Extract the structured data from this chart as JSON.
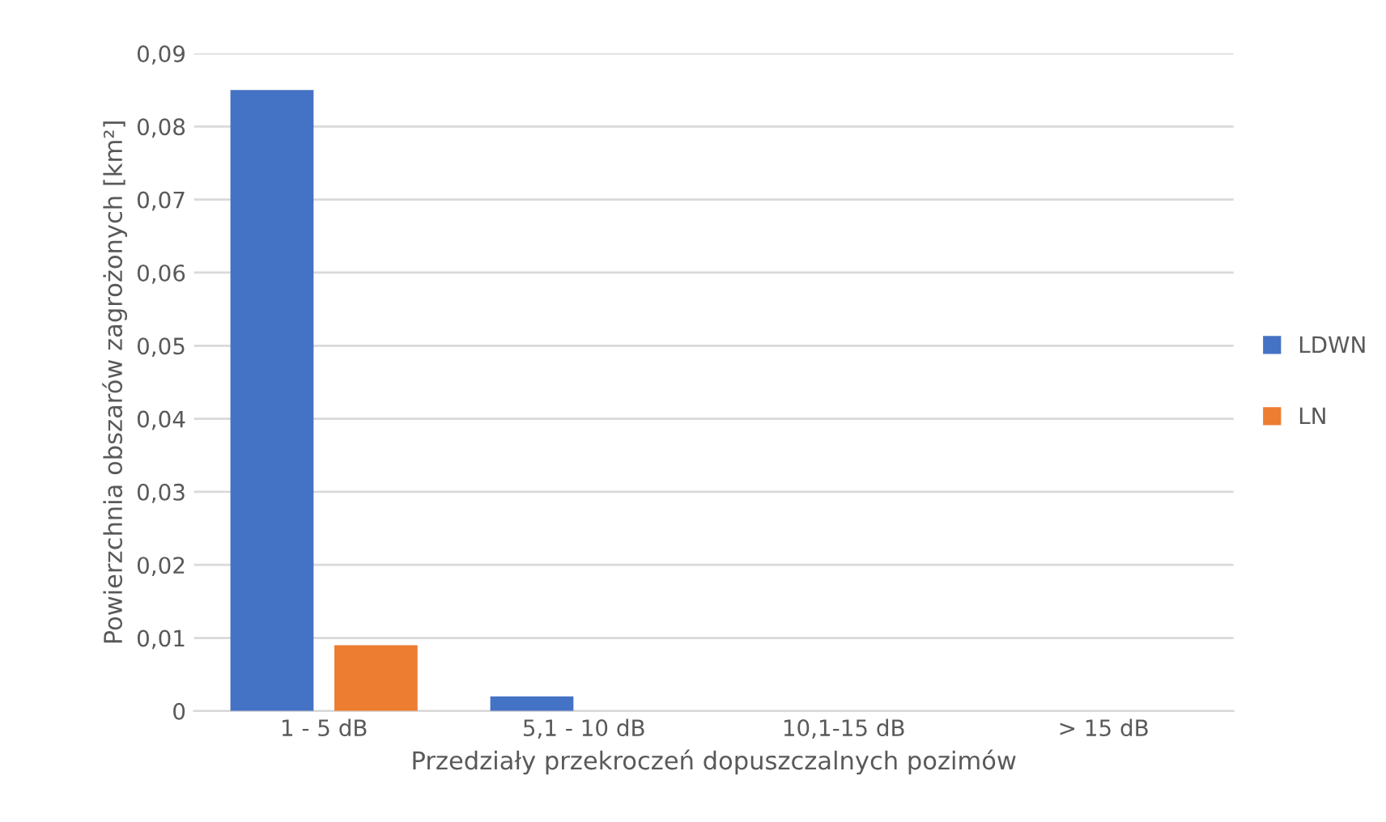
{
  "chart_data": {
    "type": "bar",
    "xlabel": "Przedziały przekroczeń dopuszczalnych pozimów",
    "ylabel": "Powierzchnia obszarów zagrożonych [km²]",
    "categories": [
      "1 - 5 dB",
      "5,1 - 10 dB",
      "10,1-15 dB",
      "> 15 dB"
    ],
    "series": [
      {
        "name": "LDWN",
        "color": "#4472c4",
        "values": [
          0.085,
          0.002,
          0,
          0
        ]
      },
      {
        "name": "LN",
        "color": "#ed7d31",
        "values": [
          0.009,
          0,
          0,
          0
        ]
      }
    ],
    "ylim": [
      0,
      0.09
    ],
    "yticks": [
      {
        "value": 0,
        "label": "0"
      },
      {
        "value": 0.01,
        "label": "0,01"
      },
      {
        "value": 0.02,
        "label": "0,02"
      },
      {
        "value": 0.03,
        "label": "0,03"
      },
      {
        "value": 0.04,
        "label": "0,04"
      },
      {
        "value": 0.05,
        "label": "0,05"
      },
      {
        "value": 0.06,
        "label": "0,06"
      },
      {
        "value": 0.07,
        "label": "0,07"
      },
      {
        "value": 0.08,
        "label": "0,08"
      },
      {
        "value": 0.09,
        "label": "0,09"
      }
    ],
    "grid": "y",
    "legend": "right"
  }
}
